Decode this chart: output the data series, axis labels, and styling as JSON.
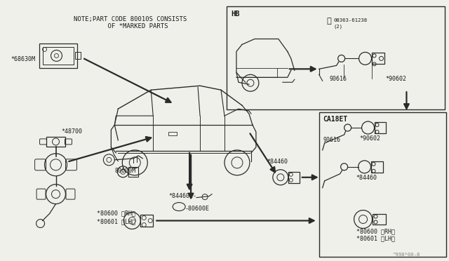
{
  "bg_color": "#f0f0ea",
  "line_color": "#2a2a2a",
  "text_color": "#1a1a1a",
  "note_text": "NOTE;PART CODE 80010S CONSISTS\n    OF *MARKED PARTS",
  "watermark": "^998*00-8",
  "hb_label": "HB",
  "ca18et_label": "CA18ET",
  "p68630M": "*68630M",
  "p48700": "*48700",
  "p80600M": "80600M",
  "p80600E": "-80600E",
  "p80600RH": "*80600 〈RH〉",
  "p80601LH": "*80601 〈LH〉",
  "p84460": "*84460",
  "p84460E": "*84460E-",
  "p90616_hb": "90616",
  "p90602_hb": "*90602",
  "p08363": "®08363-61238\n     (2)",
  "p90616_ca": "90616",
  "p90602_ca": "*90602",
  "p84460_ca": "*84460",
  "p80600_ca1": "*80600 〈RH〉",
  "p80600_ca2": "*80601 〈LH〉",
  "fs": 6.0,
  "fs_tiny": 5.2,
  "fs_label": 7.5
}
